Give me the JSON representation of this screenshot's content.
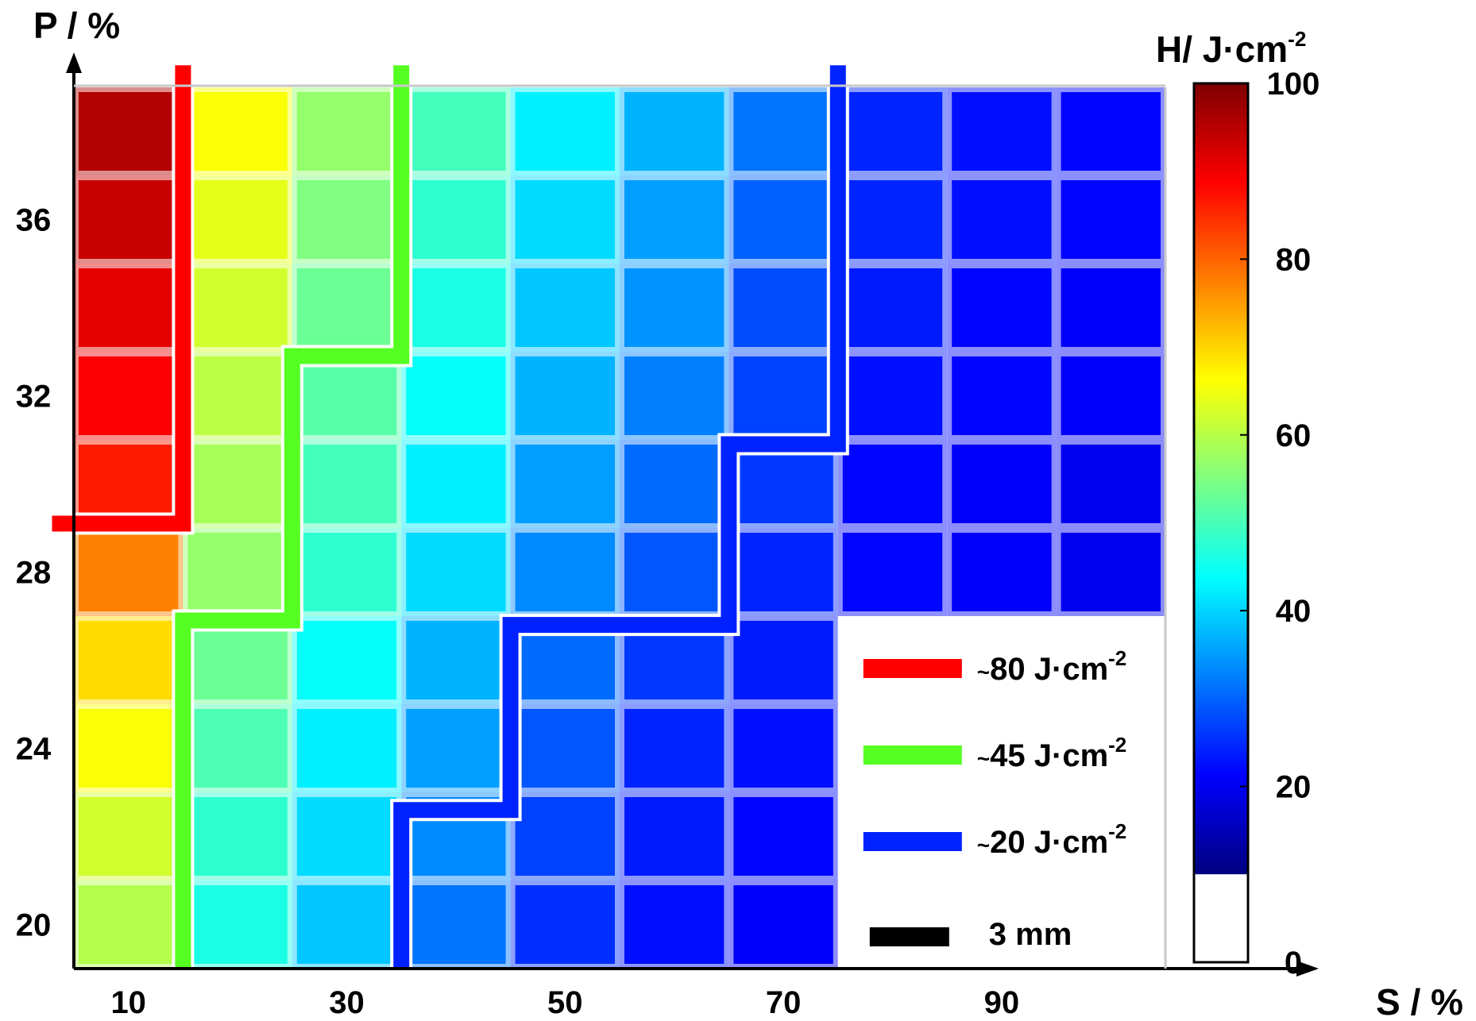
{
  "chart_data": {
    "type": "heatmap",
    "xlabel": "S / %",
    "ylabel": "P / %",
    "colorbar_label": "H/ J·cm",
    "colorbar_label_sup": "-2",
    "x_ticks": [
      "10",
      "30",
      "50",
      "70",
      "90"
    ],
    "y_ticks": [
      "20",
      "24",
      "28",
      "32",
      "36"
    ],
    "x_values": [
      10,
      20,
      30,
      40,
      50,
      60,
      70,
      80,
      90,
      100
    ],
    "y_values": [
      38,
      36,
      34,
      32,
      30,
      28,
      26,
      24,
      22,
      20
    ],
    "colorbar": {
      "min": 0,
      "max": 100,
      "ticks": [
        "0",
        "20",
        "40",
        "60",
        "80",
        "100"
      ],
      "blank_below": 10
    },
    "grid_values": [
      [
        95,
        62,
        52,
        44,
        36,
        30,
        24,
        16,
        14,
        13
      ],
      [
        93,
        60,
        50,
        42,
        34,
        28,
        22,
        16,
        14,
        13
      ],
      [
        90,
        58,
        48,
        40,
        32,
        27,
        20,
        15,
        13,
        12
      ],
      [
        88,
        56,
        46,
        38,
        30,
        25,
        19,
        14,
        13,
        12
      ],
      [
        85,
        54,
        44,
        36,
        28,
        23,
        18,
        13,
        12,
        11
      ],
      [
        75,
        52,
        42,
        34,
        26,
        21,
        16,
        13,
        12,
        11
      ],
      [
        66,
        48,
        38,
        30,
        23,
        18,
        15,
        null,
        null,
        null
      ],
      [
        62,
        45,
        36,
        28,
        21,
        16,
        14,
        null,
        null,
        null
      ],
      [
        58,
        42,
        34,
        26,
        19,
        15,
        13,
        null,
        null,
        null
      ],
      [
        55,
        40,
        32,
        24,
        17,
        14,
        12,
        null,
        null,
        null
      ]
    ],
    "series": [
      {
        "name": "~80 J·cm",
        "sup": "-2",
        "color": "#ff0000",
        "path": [
          [
            3,
            29.1
          ],
          [
            15,
            29.1
          ],
          [
            15,
            39.5
          ]
        ]
      },
      {
        "name": "~45 J·cm",
        "sup": "-2",
        "color": "#55ff22",
        "path": [
          [
            15,
            19
          ],
          [
            15,
            26.9
          ],
          [
            25,
            26.9
          ],
          [
            25,
            32.9
          ],
          [
            35,
            32.9
          ],
          [
            35,
            39.5
          ]
        ]
      },
      {
        "name": "~20 J·cm",
        "sup": "-2",
        "color": "#0022ff",
        "path": [
          [
            35,
            19
          ],
          [
            35,
            22.6
          ],
          [
            45,
            22.6
          ],
          [
            45,
            26.8
          ],
          [
            65,
            26.8
          ],
          [
            65,
            30.9
          ],
          [
            75,
            30.9
          ],
          [
            75,
            39.5
          ]
        ]
      }
    ],
    "scale_bar": {
      "label": "3 mm",
      "color": "#000000"
    },
    "legend": "bottom-right"
  }
}
